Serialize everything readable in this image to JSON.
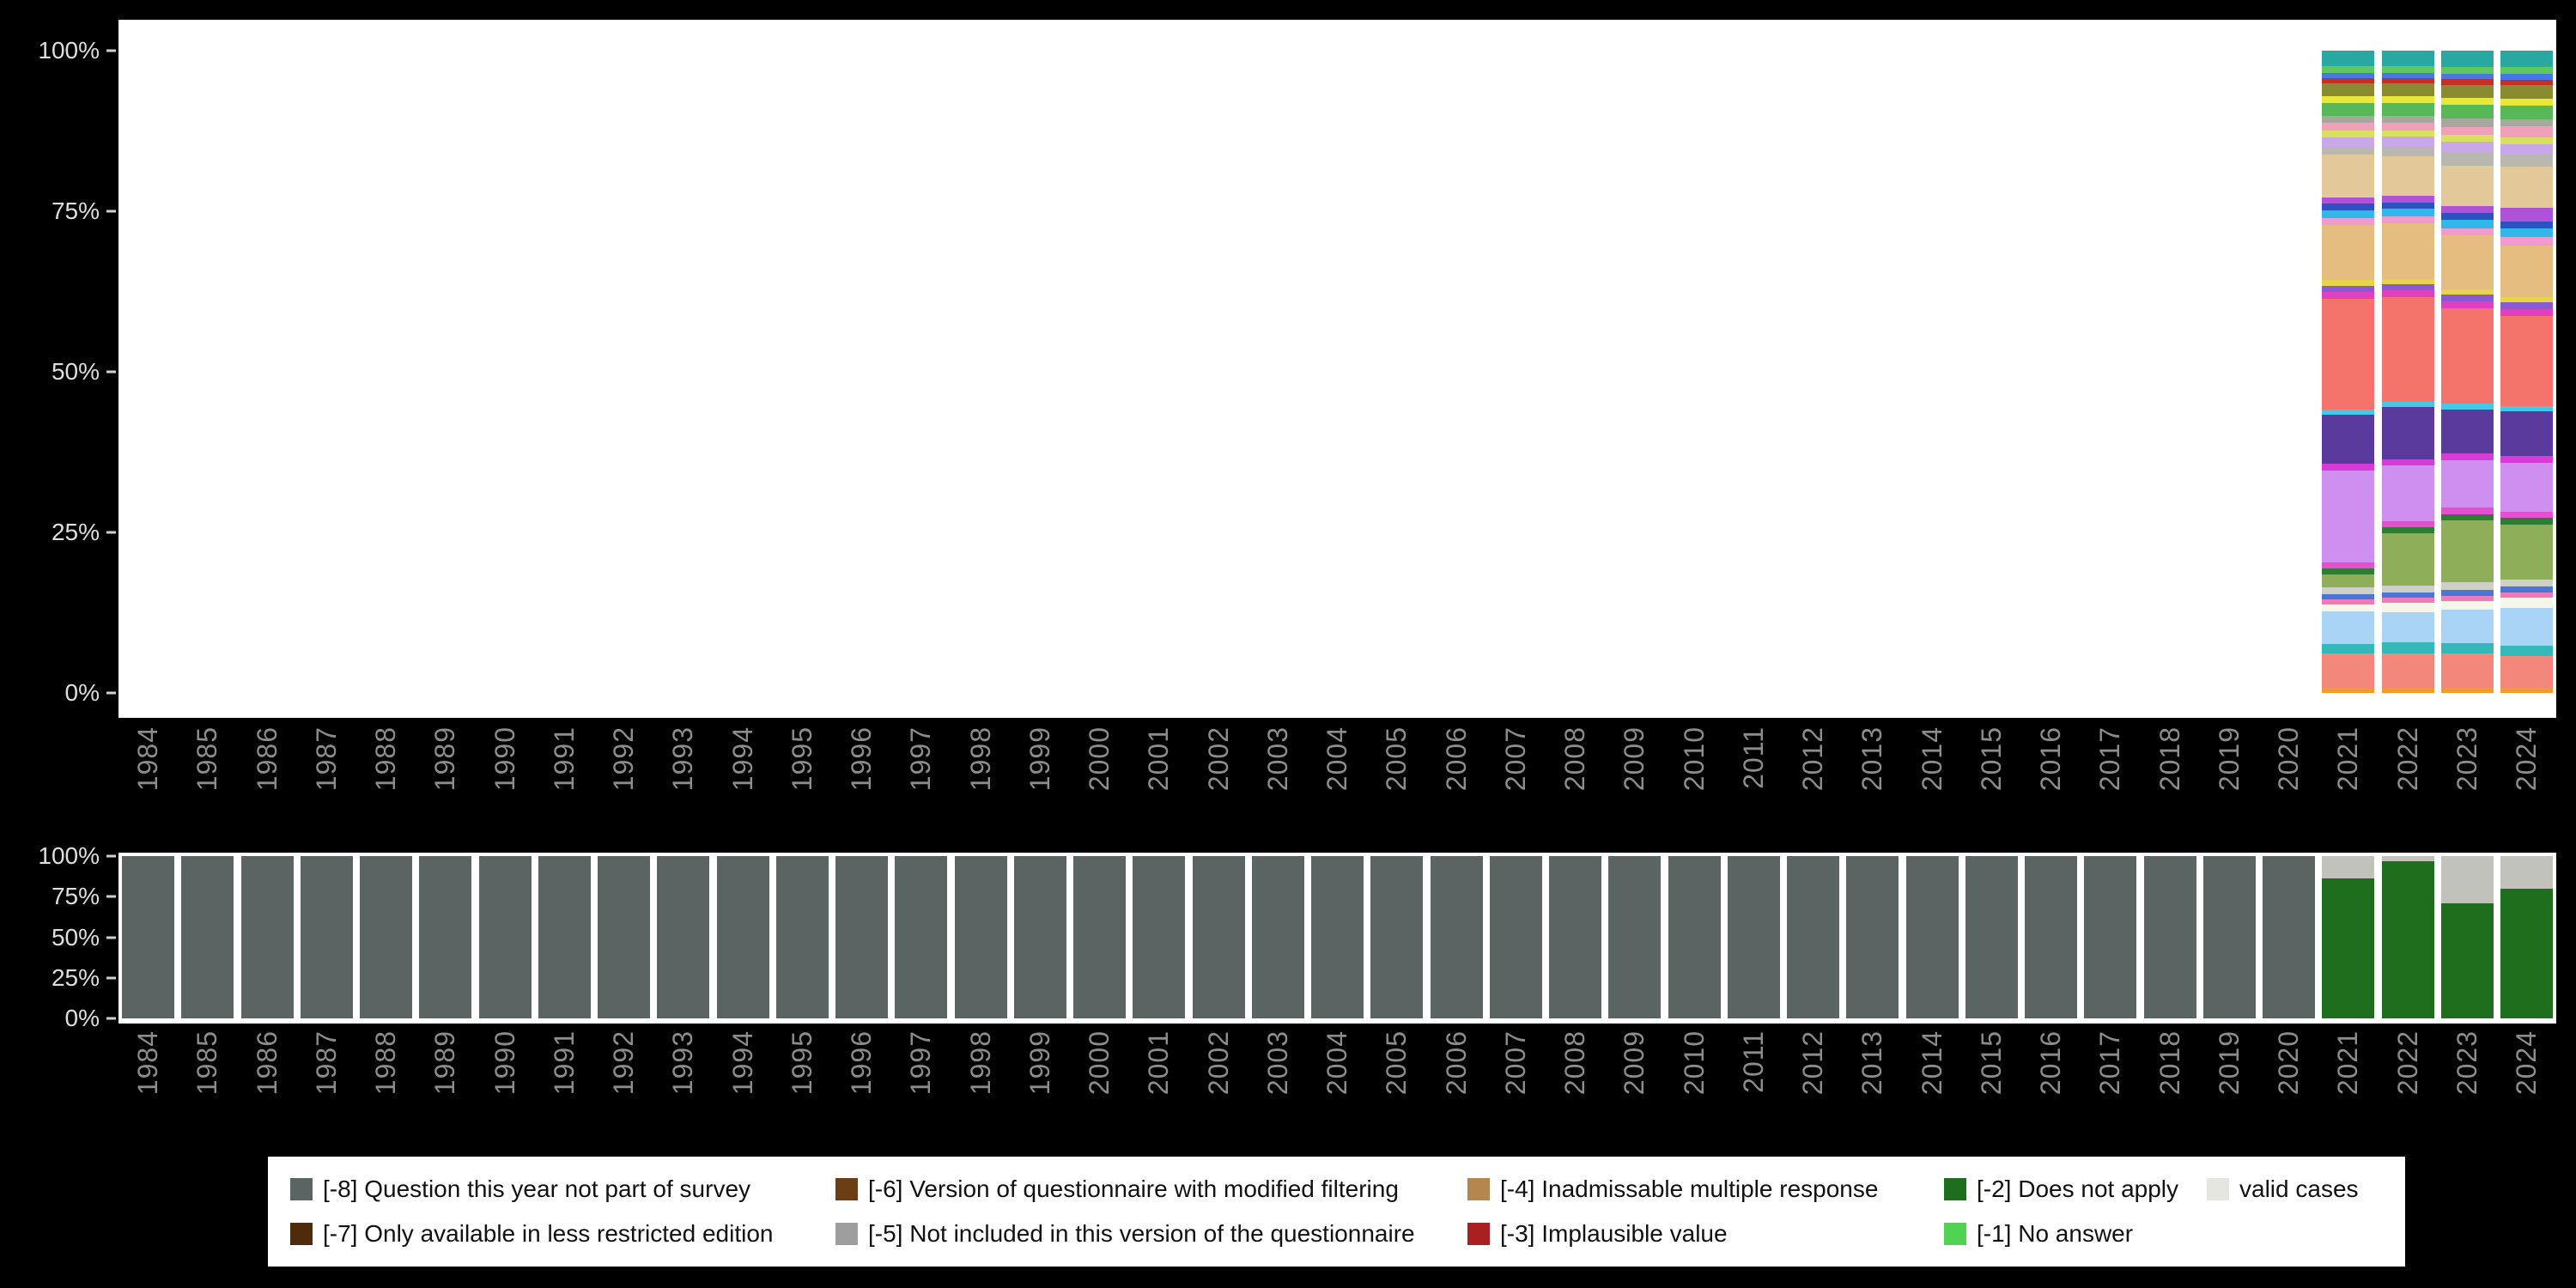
{
  "colors": {
    "page_background": "#000000",
    "plot_background": "#ffffff",
    "y_axis_text": "#dedede",
    "x_axis_text": "#8c8c8c",
    "legend_background": "#ffffff",
    "legend_text": "#111111"
  },
  "legend": {
    "items": [
      {
        "label": "[-8] Question this year not part of survey",
        "color": "#5a6462"
      },
      {
        "label": "[-7] Only available in less restricted edition",
        "color": "#4f2b0c"
      },
      {
        "label": "[-6] Version of questionnaire with modified filtering",
        "color": "#6b3e13"
      },
      {
        "label": "[-5] Not included in this version of the questionnaire",
        "color": "#9e9e9e"
      },
      {
        "label": "[-4] Inadmissable multiple response",
        "color": "#b5874e"
      },
      {
        "label": "[-3] Implausible value",
        "color": "#aa1f1f"
      },
      {
        "label": "[-2] Does not apply",
        "color": "#1e6e1e"
      },
      {
        "label": "[-1] No answer",
        "color": "#52d252"
      },
      {
        "label": "valid cases",
        "color": "#e6e6e0"
      }
    ]
  },
  "chart_data": [
    {
      "type": "bar",
      "stacked": true,
      "panel": "top",
      "title": "",
      "xlabel": "",
      "ylabel": "",
      "ylim": [
        0,
        100
      ],
      "y_ticks": [
        "100%",
        "75%",
        "50%",
        "25%",
        "0%"
      ],
      "x": [
        "1984",
        "1985",
        "1986",
        "1987",
        "1988",
        "1989",
        "1990",
        "1991",
        "1992",
        "1993",
        "1994",
        "1995",
        "1996",
        "1997",
        "1998",
        "1999",
        "2000",
        "2001",
        "2002",
        "2003",
        "2004",
        "2005",
        "2006",
        "2007",
        "2008",
        "2009",
        "2010",
        "2011",
        "2012",
        "2013",
        "2014",
        "2015",
        "2016",
        "2017",
        "2018",
        "2019",
        "2020",
        "2021",
        "2022",
        "2023",
        "2024"
      ],
      "bars": {
        "2021": [
          [
            "#f59b2a",
            0.8
          ],
          [
            "#f4877b",
            5.2
          ],
          [
            "#35b8b8",
            1.5
          ],
          [
            "#a9d4f5",
            5.0
          ],
          [
            "#f5f5e8",
            1.0
          ],
          [
            "#f07ab8",
            0.8
          ],
          [
            "#4a76d8",
            0.8
          ],
          [
            "#cfcfc9",
            1.0
          ],
          [
            "#8fae5a",
            2.0
          ],
          [
            "#2e7d32",
            1.0
          ],
          [
            "#e64fd0",
            0.9
          ],
          [
            "#cf8ff0",
            14.0
          ],
          [
            "#d83ad8",
            1.0
          ],
          [
            "#5b3a9e",
            7.5
          ],
          [
            "#45c8e8",
            0.8
          ],
          [
            "#f4736b",
            17.0
          ],
          [
            "#e040c0",
            1.0
          ],
          [
            "#8a5ad0",
            1.0
          ],
          [
            "#e8d44a",
            0.8
          ],
          [
            "#e5bd80",
            8.5
          ],
          [
            "#f09ad0",
            1.0
          ],
          [
            "#30b8e8",
            1.2
          ],
          [
            "#2a52c0",
            1.0
          ],
          [
            "#b052d8",
            1.0
          ],
          [
            "#e3c89a",
            6.5
          ],
          [
            "#b8b8b0",
            1.2
          ],
          [
            "#c8a8e8",
            1.5
          ],
          [
            "#d8e060",
            1.0
          ],
          [
            "#f0a0b8",
            1.2
          ],
          [
            "#a8a8a0",
            1.0
          ],
          [
            "#58b858",
            2.0
          ],
          [
            "#e8e83a",
            1.0
          ],
          [
            "#8a8a30",
            2.0
          ],
          [
            "#c03028",
            0.8
          ],
          [
            "#4878e8",
            0.8
          ],
          [
            "#60c860",
            1.0
          ],
          [
            "#28a8a0",
            2.4
          ]
        ],
        "2022": [
          [
            "#f59b2a",
            0.8
          ],
          [
            "#f4877b",
            5.2
          ],
          [
            "#35b8b8",
            1.8
          ],
          [
            "#a9d4f5",
            4.5
          ],
          [
            "#f5f5e8",
            1.5
          ],
          [
            "#f07ab8",
            0.8
          ],
          [
            "#4a76d8",
            0.8
          ],
          [
            "#cfcfc9",
            1.0
          ],
          [
            "#8fae5a",
            8.0
          ],
          [
            "#2e7d32",
            1.0
          ],
          [
            "#e64fd0",
            0.9
          ],
          [
            "#cf8ff0",
            8.5
          ],
          [
            "#d83ad8",
            1.0
          ],
          [
            "#5b3a9e",
            8.0
          ],
          [
            "#45c8e8",
            0.8
          ],
          [
            "#f4736b",
            16.0
          ],
          [
            "#e040c0",
            1.0
          ],
          [
            "#8a5ad0",
            1.0
          ],
          [
            "#e8d44a",
            0.8
          ],
          [
            "#e5bd80",
            8.5
          ],
          [
            "#f09ad0",
            1.0
          ],
          [
            "#30b8e8",
            1.2
          ],
          [
            "#2a52c0",
            1.0
          ],
          [
            "#b052d8",
            1.0
          ],
          [
            "#e3c89a",
            6.0
          ],
          [
            "#b8b8b0",
            1.5
          ],
          [
            "#c8a8e8",
            1.5
          ],
          [
            "#d8e060",
            1.0
          ],
          [
            "#f0a0b8",
            1.2
          ],
          [
            "#a8a8a0",
            1.0
          ],
          [
            "#58b858",
            2.0
          ],
          [
            "#e8e83a",
            1.0
          ],
          [
            "#8a8a30",
            2.0
          ],
          [
            "#c03028",
            0.8
          ],
          [
            "#4878e8",
            0.8
          ],
          [
            "#60c860",
            1.0
          ],
          [
            "#28a8a0",
            2.4
          ]
        ],
        "2023": [
          [
            "#f59b2a",
            0.8
          ],
          [
            "#f4877b",
            5.0
          ],
          [
            "#35b8b8",
            1.5
          ],
          [
            "#a9d4f5",
            5.0
          ],
          [
            "#f5f5e8",
            1.2
          ],
          [
            "#f07ab8",
            0.8
          ],
          [
            "#4a76d8",
            0.8
          ],
          [
            "#cfcfc9",
            1.2
          ],
          [
            "#8fae5a",
            9.0
          ],
          [
            "#2e7d32",
            1.0
          ],
          [
            "#e64fd0",
            0.9
          ],
          [
            "#cf8ff0",
            7.0
          ],
          [
            "#d83ad8",
            1.0
          ],
          [
            "#5b3a9e",
            6.5
          ],
          [
            "#45c8e8",
            0.8
          ],
          [
            "#f4736b",
            14.0
          ],
          [
            "#e040c0",
            1.0
          ],
          [
            "#8a5ad0",
            1.0
          ],
          [
            "#e8d44a",
            0.8
          ],
          [
            "#e5bd80",
            8.0
          ],
          [
            "#f09ad0",
            1.0
          ],
          [
            "#30b8e8",
            1.2
          ],
          [
            "#2a52c0",
            1.0
          ],
          [
            "#b052d8",
            1.0
          ],
          [
            "#e3c89a",
            6.0
          ],
          [
            "#b8b8b0",
            2.0
          ],
          [
            "#c8a8e8",
            1.5
          ],
          [
            "#d8e060",
            1.0
          ],
          [
            "#f0a0b8",
            1.2
          ],
          [
            "#a8a8a0",
            1.2
          ],
          [
            "#58b858",
            2.0
          ],
          [
            "#e8e83a",
            1.0
          ],
          [
            "#8a8a30",
            2.0
          ],
          [
            "#c03028",
            0.8
          ],
          [
            "#4878e8",
            0.8
          ],
          [
            "#60c860",
            1.0
          ],
          [
            "#28a8a0",
            2.4
          ]
        ],
        "2024": [
          [
            "#f59b2a",
            0.8
          ],
          [
            "#f4877b",
            4.5
          ],
          [
            "#35b8b8",
            1.5
          ],
          [
            "#a9d4f5",
            5.5
          ],
          [
            "#f5f5e8",
            1.5
          ],
          [
            "#f07ab8",
            0.8
          ],
          [
            "#4a76d8",
            0.8
          ],
          [
            "#cfcfc9",
            1.0
          ],
          [
            "#8fae5a",
            8.0
          ],
          [
            "#2e7d32",
            1.0
          ],
          [
            "#e64fd0",
            0.9
          ],
          [
            "#cf8ff0",
            7.0
          ],
          [
            "#d83ad8",
            1.0
          ],
          [
            "#5b3a9e",
            6.5
          ],
          [
            "#45c8e8",
            0.8
          ],
          [
            "#f4736b",
            13.0
          ],
          [
            "#e040c0",
            1.0
          ],
          [
            "#8a5ad0",
            1.0
          ],
          [
            "#e8d44a",
            0.8
          ],
          [
            "#e5bd80",
            7.5
          ],
          [
            "#f09ad0",
            1.2
          ],
          [
            "#30b8e8",
            1.2
          ],
          [
            "#2a52c0",
            1.0
          ],
          [
            "#b052d8",
            2.0
          ],
          [
            "#e3c89a",
            6.0
          ],
          [
            "#b8b8b0",
            1.8
          ],
          [
            "#c8a8e8",
            1.5
          ],
          [
            "#d8e060",
            1.0
          ],
          [
            "#f0a0b8",
            1.5
          ],
          [
            "#a8a8a0",
            1.0
          ],
          [
            "#58b858",
            2.0
          ],
          [
            "#e8e83a",
            1.0
          ],
          [
            "#8a8a30",
            2.0
          ],
          [
            "#c03028",
            0.8
          ],
          [
            "#4878e8",
            0.8
          ],
          [
            "#60c860",
            1.0
          ],
          [
            "#28a8a0",
            2.4
          ]
        ]
      }
    },
    {
      "type": "bar",
      "stacked": true,
      "panel": "bottom",
      "title": "",
      "xlabel": "",
      "ylabel": "",
      "ylim": [
        0,
        100
      ],
      "y_ticks": [
        "100%",
        "75%",
        "50%",
        "25%",
        "0%"
      ],
      "x": [
        "1984",
        "1985",
        "1986",
        "1987",
        "1988",
        "1989",
        "1990",
        "1991",
        "1992",
        "1993",
        "1994",
        "1995",
        "1996",
        "1997",
        "1998",
        "1999",
        "2000",
        "2001",
        "2002",
        "2003",
        "2004",
        "2005",
        "2006",
        "2007",
        "2008",
        "2009",
        "2010",
        "2011",
        "2012",
        "2013",
        "2014",
        "2015",
        "2016",
        "2017",
        "2018",
        "2019",
        "2020",
        "2021",
        "2022",
        "2023",
        "2024"
      ],
      "series": [
        {
          "name": "[-8] Question this year not part of survey",
          "color": "#5a6462",
          "values": [
            100,
            100,
            100,
            100,
            100,
            100,
            100,
            100,
            100,
            100,
            100,
            100,
            100,
            100,
            100,
            100,
            100,
            100,
            100,
            100,
            100,
            100,
            100,
            100,
            100,
            100,
            100,
            100,
            100,
            100,
            100,
            100,
            100,
            100,
            100,
            100,
            100,
            0,
            0,
            0,
            0
          ]
        },
        {
          "name": "[-2] Does not apply",
          "color": "#1e6e1e",
          "values": [
            0,
            0,
            0,
            0,
            0,
            0,
            0,
            0,
            0,
            0,
            0,
            0,
            0,
            0,
            0,
            0,
            0,
            0,
            0,
            0,
            0,
            0,
            0,
            0,
            0,
            0,
            0,
            0,
            0,
            0,
            0,
            0,
            0,
            0,
            0,
            0,
            0,
            86,
            97,
            71,
            80
          ]
        },
        {
          "name": "valid cases",
          "color": "#c2c2bc",
          "values": [
            0,
            0,
            0,
            0,
            0,
            0,
            0,
            0,
            0,
            0,
            0,
            0,
            0,
            0,
            0,
            0,
            0,
            0,
            0,
            0,
            0,
            0,
            0,
            0,
            0,
            0,
            0,
            0,
            0,
            0,
            0,
            0,
            0,
            0,
            0,
            0,
            0,
            14,
            3,
            29,
            20
          ]
        }
      ]
    }
  ]
}
